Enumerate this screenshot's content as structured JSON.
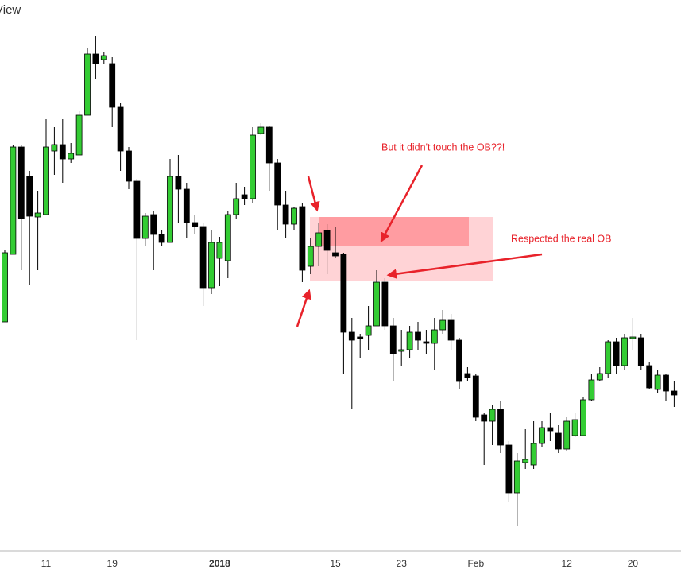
{
  "chart_data": {
    "type": "candlestick",
    "title": "View",
    "categories": [
      null,
      null,
      null,
      null,
      null,
      "11",
      null,
      null,
      null,
      null,
      null,
      null,
      null,
      "19",
      null,
      null,
      null,
      null,
      null,
      null,
      null,
      null,
      null,
      null,
      null,
      null,
      "2018",
      null,
      null,
      null,
      null,
      null,
      null,
      null,
      null,
      null,
      null,
      null,
      null,
      null,
      "15",
      null,
      null,
      null,
      null,
      null,
      null,
      null,
      "23",
      null,
      null,
      null,
      null,
      null,
      null,
      null,
      null,
      "Feb",
      null,
      null,
      null,
      null,
      null,
      null,
      null,
      null,
      null,
      null,
      "12",
      null,
      null,
      null,
      null,
      null,
      null,
      null,
      "20",
      null,
      null,
      null,
      null,
      null
    ],
    "open": [
      295,
      380,
      515,
      478,
      427,
      430,
      510,
      518,
      500,
      505,
      555,
      632,
      625,
      620,
      565,
      510,
      472,
      400,
      430,
      405,
      395,
      478,
      462,
      420,
      415,
      338,
      375,
      372,
      430,
      455,
      450,
      532,
      540,
      495,
      442,
      418,
      440,
      365,
      390,
      410,
      382,
      380,
      282,
      276,
      278,
      290,
      345,
      290,
      258,
      260,
      282,
      270,
      268,
      285,
      297,
      272,
      230,
      227,
      178,
      170,
      185,
      140,
      80,
      118,
      115,
      142,
      162,
      155,
      135,
      152,
      152,
      197,
      222,
      230,
      270,
      240,
      274,
      275,
      240,
      210,
      228,
      208
    ],
    "high": [
      385,
      517,
      517,
      485,
      460,
      550,
      540,
      550,
      520,
      560,
      640,
      655,
      635,
      628,
      570,
      515,
      475,
      432,
      435,
      410,
      500,
      505,
      470,
      430,
      420,
      410,
      402,
      435,
      470,
      465,
      540,
      545,
      542,
      500,
      460,
      440,
      445,
      400,
      420,
      418,
      415,
      382,
      300,
      280,
      315,
      360,
      350,
      300,
      285,
      290,
      295,
      285,
      300,
      310,
      305,
      275,
      238,
      230,
      180,
      190,
      195,
      145,
      130,
      160,
      170,
      170,
      180,
      165,
      175,
      180,
      200,
      230,
      238,
      272,
      275,
      280,
      300,
      280,
      245,
      235,
      230,
      220
    ],
    "low": [
      295,
      380,
      360,
      342,
      360,
      430,
      480,
      470,
      495,
      505,
      555,
      600,
      620,
      540,
      485,
      462,
      272,
      390,
      360,
      390,
      395,
      420,
      400,
      405,
      315,
      330,
      340,
      350,
      425,
      442,
      445,
      530,
      460,
      410,
      400,
      410,
      345,
      355,
      365,
      355,
      375,
      230,
      185,
      250,
      260,
      290,
      285,
      220,
      240,
      250,
      260,
      255,
      235,
      280,
      260,
      210,
      220,
      170,
      115,
      140,
      130,
      68,
      38,
      110,
      110,
      138,
      145,
      130,
      132,
      150,
      152,
      195,
      220,
      225,
      230,
      235,
      260,
      235,
      210,
      205,
      195,
      188
    ],
    "close": [
      382,
      515,
      425,
      428,
      432,
      515,
      518,
      500,
      507,
      555,
      632,
      620,
      630,
      565,
      510,
      472,
      400,
      428,
      405,
      395,
      478,
      462,
      420,
      415,
      338,
      395,
      395,
      430,
      450,
      450,
      530,
      540,
      495,
      442,
      418,
      438,
      360,
      390,
      407,
      385,
      378,
      282,
      272,
      274,
      290,
      345,
      290,
      255,
      260,
      282,
      272,
      268,
      285,
      297,
      272,
      220,
      225,
      175,
      170,
      185,
      140,
      80,
      120,
      122,
      142,
      162,
      158,
      135,
      170,
      172,
      197,
      222,
      230,
      270,
      240,
      275,
      276,
      240,
      212,
      228,
      208,
      203
    ],
    "ylim": [
      10,
      700
    ],
    "up_color": "#33cc33",
    "down_color": "#000000",
    "annotations": [
      "But it didn't touch the OB??!",
      "Respected the real OB"
    ]
  }
}
